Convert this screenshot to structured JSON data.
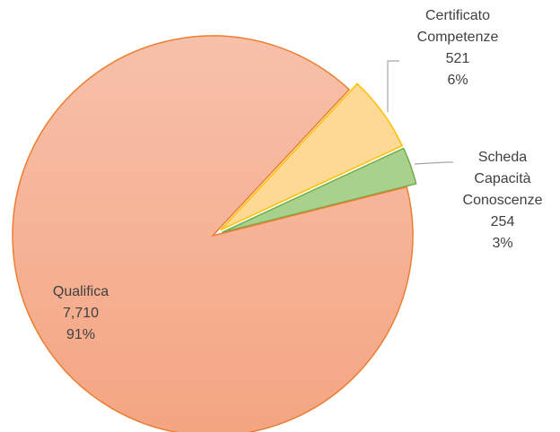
{
  "chart_data": {
    "type": "pie",
    "categories": [
      "Certificato Competenze",
      "Scheda Capacità Conoscenze",
      "Qualifica"
    ],
    "values": [
      521,
      254,
      7710
    ],
    "value_labels": [
      "521",
      "254",
      "7,710"
    ],
    "percentages": [
      6,
      3,
      91
    ],
    "percentage_labels": [
      "6%",
      "3%",
      "91%"
    ],
    "colors": [
      "#fdd995",
      "#a9d18e",
      "#f5ae92"
    ],
    "edge_colors": [
      "#ffc000",
      "#70ad47",
      "#ed7d31"
    ]
  }
}
